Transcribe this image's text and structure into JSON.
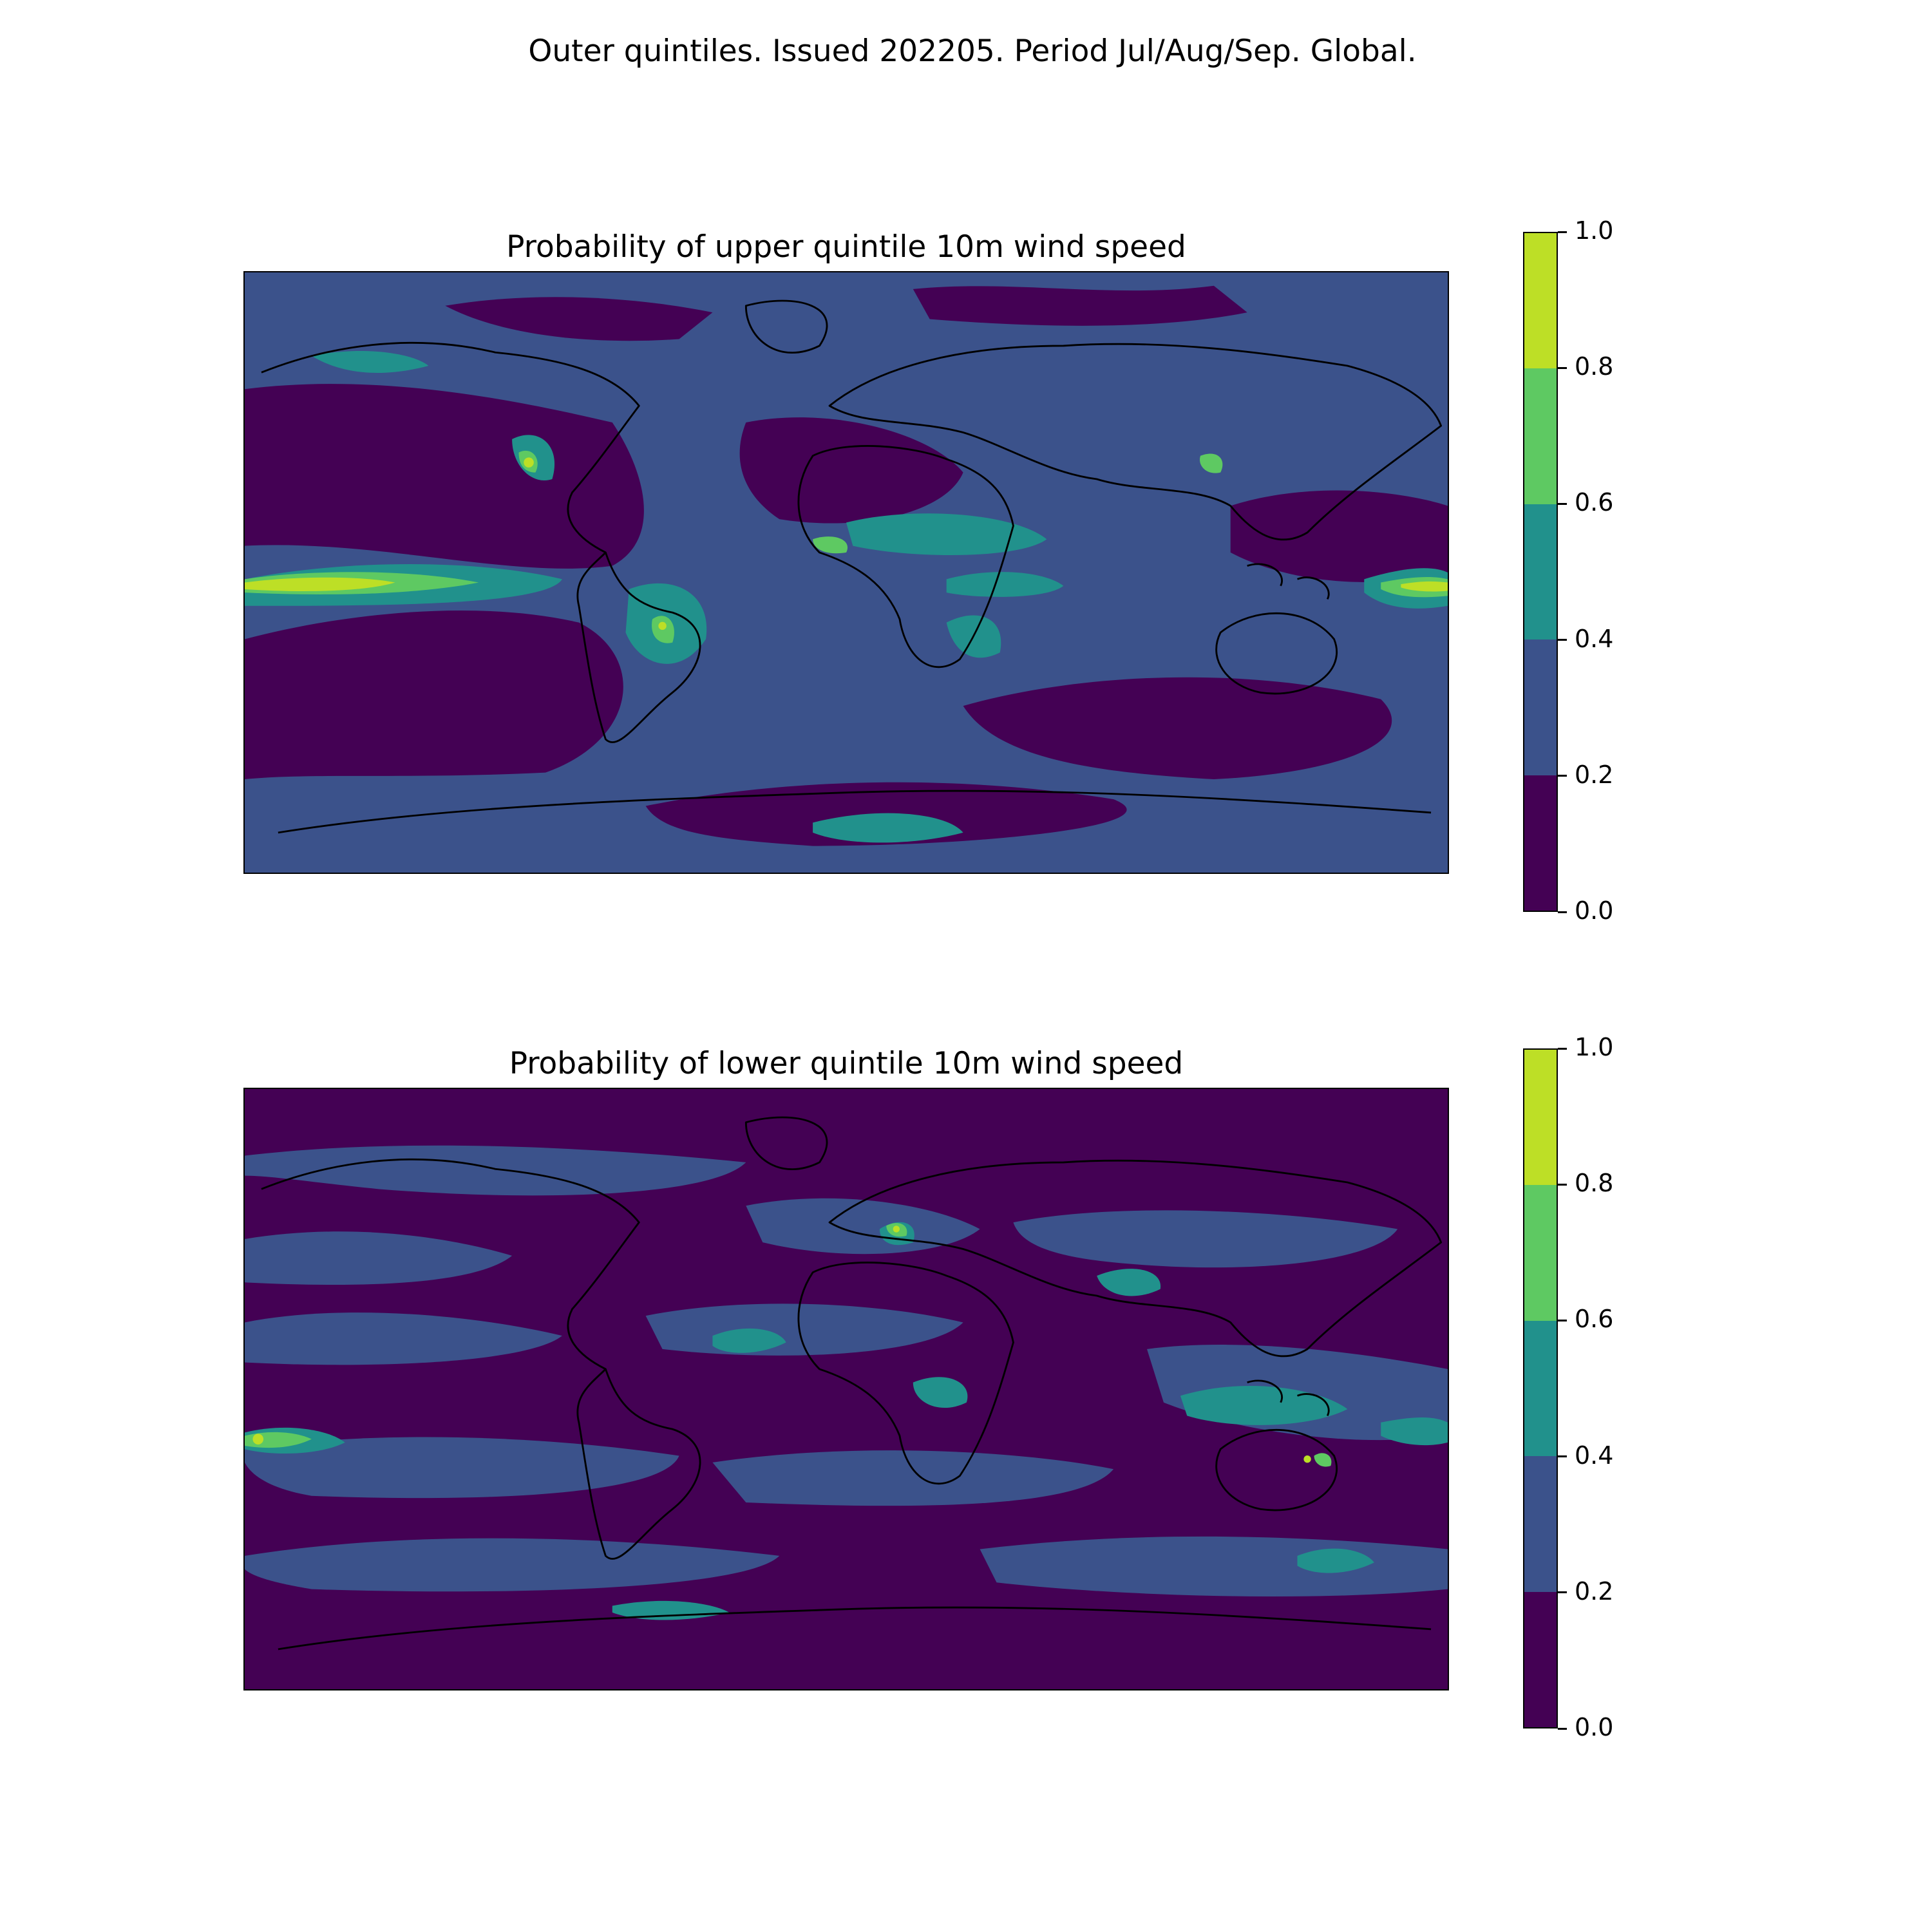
{
  "figure": {
    "title": "Outer quintiles. Issued 202205. Period Jul/Aug/Sep. Global."
  },
  "colors": {
    "levels": [
      "#440154",
      "#3b528b",
      "#21918c",
      "#5ec962",
      "#bddf26"
    ],
    "coast": "#000000"
  },
  "panels": [
    {
      "title": "Probability of upper quintile 10m wind speed",
      "colorbar": {
        "min": 0.0,
        "max": 1.0,
        "ticks": [
          "0.0",
          "0.2",
          "0.4",
          "0.6",
          "0.8",
          "1.0"
        ]
      }
    },
    {
      "title": "Probability of lower quintile 10m wind speed",
      "colorbar": {
        "min": 0.0,
        "max": 1.0,
        "ticks": [
          "0.0",
          "0.2",
          "0.4",
          "0.6",
          "0.8",
          "1.0"
        ]
      }
    }
  ]
}
